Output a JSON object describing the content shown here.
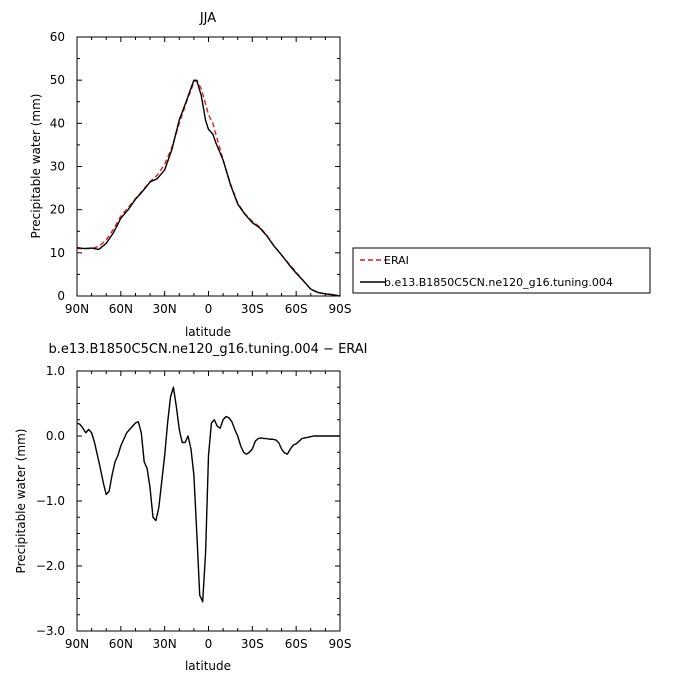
{
  "chart_data": [
    {
      "type": "line",
      "title": "JJA",
      "xlabel": "latitude",
      "ylabel": "Precipitable water (mm)",
      "xlim": [
        90,
        -90
      ],
      "ylim": [
        0,
        60
      ],
      "x_ticks": [
        {
          "value": 90,
          "label": "90N"
        },
        {
          "value": 60,
          "label": "60N"
        },
        {
          "value": 30,
          "label": "30N"
        },
        {
          "value": 0,
          "label": "0"
        },
        {
          "value": -30,
          "label": "30S"
        },
        {
          "value": -60,
          "label": "60S"
        },
        {
          "value": -90,
          "label": "90S"
        }
      ],
      "y_ticks": [
        0,
        10,
        20,
        30,
        40,
        50,
        60
      ],
      "legend_placement": "right",
      "series": [
        {
          "name": "ERAI",
          "color": "#e41a1c",
          "dash": "dashed",
          "x": [
            90,
            85,
            80,
            75,
            70,
            65,
            60,
            55,
            50,
            45,
            40,
            35,
            30,
            25,
            20,
            15,
            10,
            8,
            5,
            2,
            0,
            -3,
            -5,
            -10,
            -15,
            -20,
            -25,
            -30,
            -35,
            -40,
            -45,
            -50,
            -55,
            -60,
            -65,
            -70,
            -75,
            -80,
            -85,
            -90
          ],
          "y": [
            11,
            11,
            11,
            11.5,
            13,
            15.5,
            18.5,
            20.5,
            22.5,
            24.5,
            26.5,
            28,
            30.5,
            34.5,
            40,
            45,
            49.5,
            50,
            48,
            44.5,
            42,
            40,
            37.5,
            31.5,
            26,
            21.5,
            19,
            17.3,
            16,
            14,
            11.5,
            9.5,
            7.5,
            5.5,
            3.5,
            1.5,
            0.8,
            0.5,
            0.3,
            0
          ]
        },
        {
          "name": "b.e13.B1850C5CN.ne120_g16.tuning.004",
          "color": "#000000",
          "dash": "solid",
          "x": [
            90,
            85,
            80,
            75,
            70,
            65,
            60,
            55,
            50,
            45,
            40,
            35,
            30,
            25,
            20,
            15,
            10,
            8,
            5,
            2,
            0,
            -3,
            -5,
            -10,
            -15,
            -20,
            -25,
            -30,
            -35,
            -40,
            -45,
            -50,
            -55,
            -60,
            -65,
            -70,
            -75,
            -80,
            -85,
            -90
          ],
          "y": [
            11.2,
            11,
            11.1,
            10.8,
            12.2,
            14.7,
            18,
            20,
            22.4,
            24.3,
            26.4,
            27.2,
            29.2,
            34,
            40.8,
            45.3,
            50,
            49.9,
            46.5,
            40.7,
            38.6,
            37.5,
            35.5,
            31.5,
            25.8,
            21.3,
            18.9,
            17,
            15.8,
            13.9,
            11.5,
            9.5,
            7.3,
            5.3,
            3.5,
            1.6,
            0.8,
            0.5,
            0.3,
            0
          ]
        }
      ]
    },
    {
      "type": "line",
      "title": "b.e13.B1850C5CN.ne120_g16.tuning.004 − ERAI",
      "xlabel": "latitude",
      "ylabel": "Precipitable water (mm)",
      "xlim": [
        90,
        -90
      ],
      "ylim": [
        -3.0,
        1.0
      ],
      "x_ticks": [
        {
          "value": 90,
          "label": "90N"
        },
        {
          "value": 60,
          "label": "60N"
        },
        {
          "value": 30,
          "label": "30N"
        },
        {
          "value": 0,
          "label": "0"
        },
        {
          "value": -30,
          "label": "30S"
        },
        {
          "value": -60,
          "label": "60S"
        },
        {
          "value": -90,
          "label": "90S"
        }
      ],
      "y_ticks": [
        {
          "value": 1.0,
          "label": "1.0"
        },
        {
          "value": 0.0,
          "label": "0.0"
        },
        {
          "value": -1.0,
          "label": "−1.0"
        },
        {
          "value": -2.0,
          "label": "−2.0"
        },
        {
          "value": -3.0,
          "label": "−3.0"
        }
      ],
      "series": [
        {
          "color": "#000000",
          "dash": "solid",
          "x": [
            90,
            88,
            86,
            84,
            82,
            80,
            78,
            76,
            74,
            72,
            70,
            68,
            66,
            64,
            62,
            60,
            58,
            56,
            54,
            52,
            50,
            48,
            46,
            44,
            42,
            40,
            38,
            36,
            34,
            32,
            30,
            28,
            26,
            24,
            22,
            20,
            18,
            16,
            14,
            12,
            10,
            8,
            6,
            4,
            2,
            0,
            -2,
            -4,
            -6,
            -8,
            -10,
            -12,
            -14,
            -16,
            -18,
            -20,
            -22,
            -24,
            -26,
            -28,
            -30,
            -32,
            -34,
            -36,
            -38,
            -40,
            -42,
            -44,
            -46,
            -48,
            -50,
            -52,
            -54,
            -56,
            -58,
            -60,
            -62,
            -64,
            -66,
            -68,
            -70,
            -72,
            -74,
            -76,
            -78,
            -80,
            -82,
            -84,
            -86,
            -88,
            -90
          ],
          "y": [
            0.2,
            0.18,
            0.12,
            0.05,
            0.1,
            0.05,
            -0.1,
            -0.3,
            -0.5,
            -0.72,
            -0.9,
            -0.85,
            -0.6,
            -0.4,
            -0.3,
            -0.15,
            -0.05,
            0.05,
            0.1,
            0.15,
            0.2,
            0.22,
            0.05,
            -0.4,
            -0.5,
            -0.8,
            -1.25,
            -1.3,
            -1.1,
            -0.7,
            -0.3,
            0.2,
            0.6,
            0.75,
            0.45,
            0.1,
            -0.1,
            -0.1,
            0.0,
            -0.2,
            -0.6,
            -1.5,
            -2.45,
            -2.55,
            -1.8,
            -0.3,
            0.2,
            0.25,
            0.15,
            0.12,
            0.25,
            0.3,
            0.28,
            0.22,
            0.1,
            0.0,
            -0.15,
            -0.25,
            -0.28,
            -0.25,
            -0.2,
            -0.08,
            -0.04,
            -0.03,
            -0.04,
            -0.04,
            -0.05,
            -0.05,
            -0.06,
            -0.1,
            -0.2,
            -0.26,
            -0.28,
            -0.2,
            -0.14,
            -0.12,
            -0.08,
            -0.04,
            -0.03,
            -0.02,
            -0.01,
            0.0,
            0.0,
            0.0,
            0.0,
            0.0,
            0.0,
            0.0,
            0.0,
            0.0,
            0.0
          ]
        }
      ]
    }
  ]
}
